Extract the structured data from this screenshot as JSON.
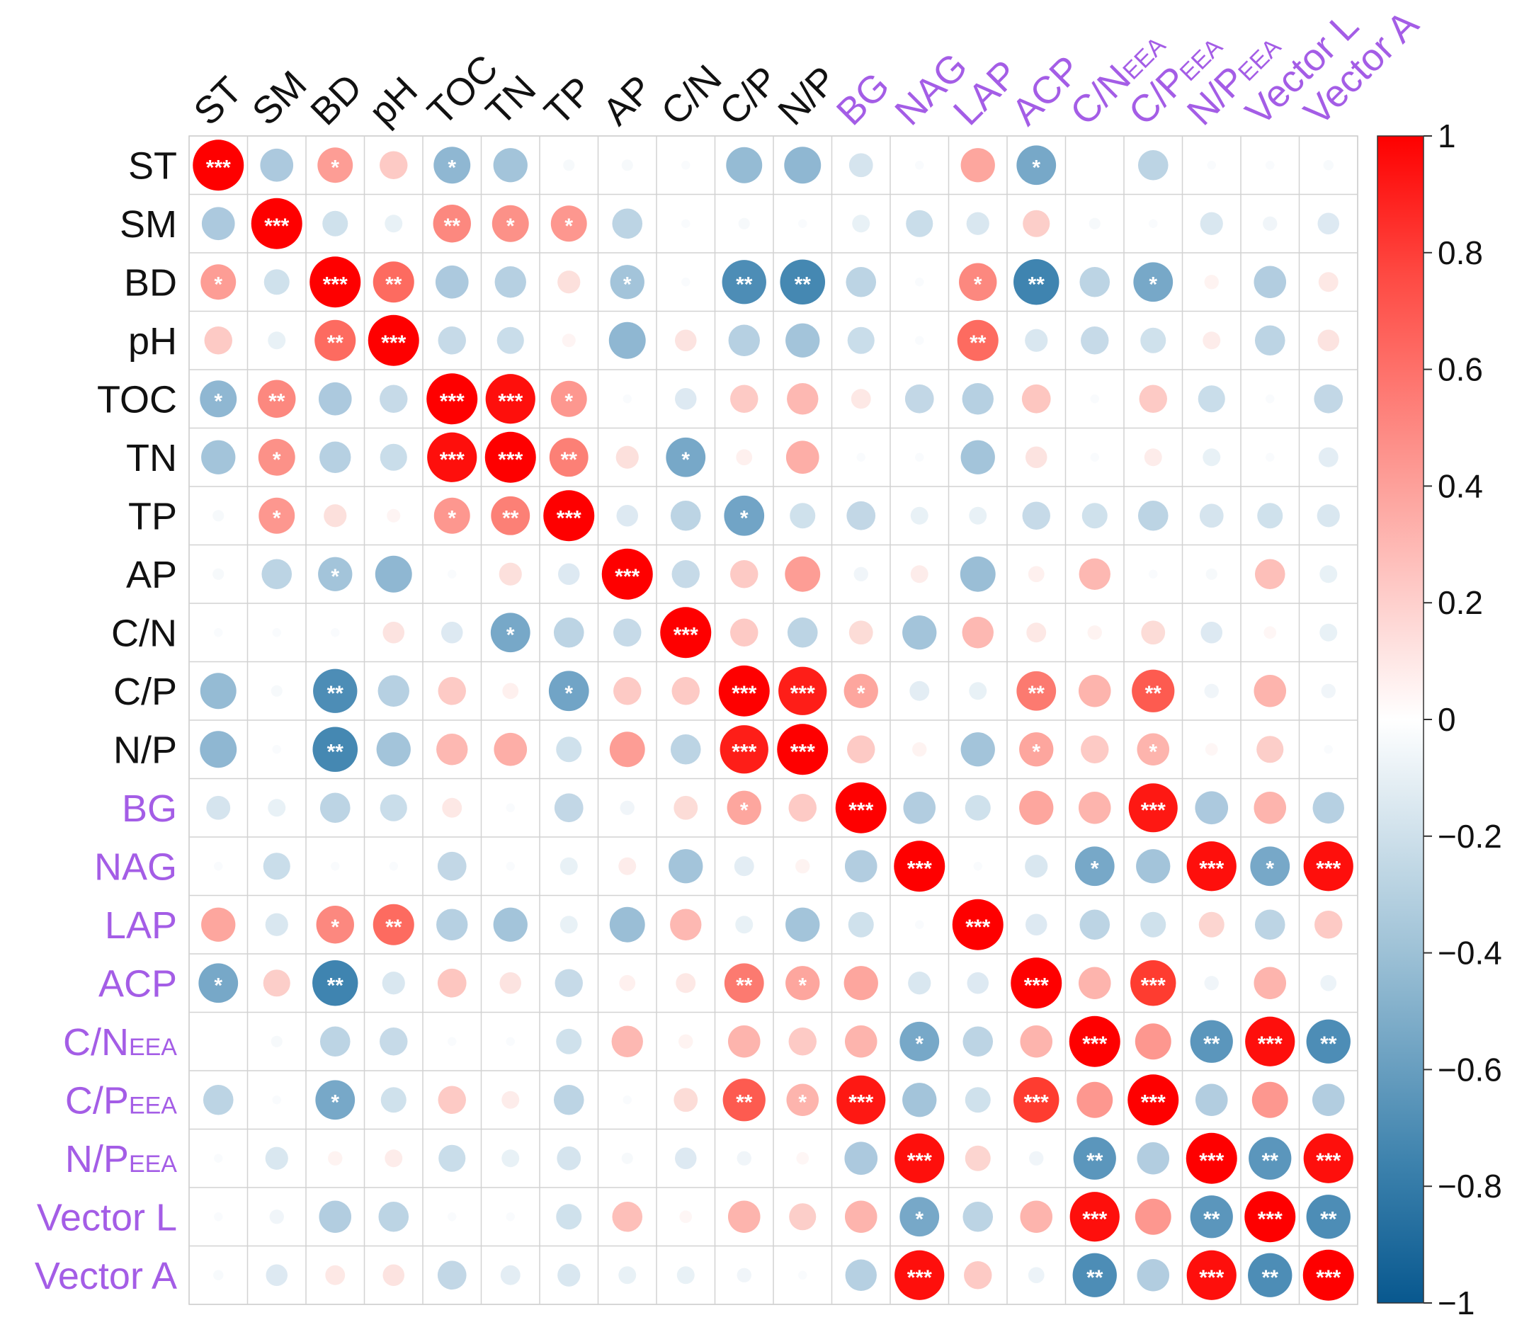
{
  "chart_data": {
    "type": "heatmap",
    "subtype": "correlation-circle-matrix",
    "title": "",
    "variables": [
      {
        "label": "ST",
        "main": "ST",
        "sub": "",
        "group": "soil"
      },
      {
        "label": "SM",
        "main": "SM",
        "sub": "",
        "group": "soil"
      },
      {
        "label": "BD",
        "main": "BD",
        "sub": "",
        "group": "soil"
      },
      {
        "label": "pH",
        "main": "pH",
        "sub": "",
        "group": "soil"
      },
      {
        "label": "TOC",
        "main": "TOC",
        "sub": "",
        "group": "soil"
      },
      {
        "label": "TN",
        "main": "TN",
        "sub": "",
        "group": "soil"
      },
      {
        "label": "TP",
        "main": "TP",
        "sub": "",
        "group": "soil"
      },
      {
        "label": "AP",
        "main": "AP",
        "sub": "",
        "group": "soil"
      },
      {
        "label": "C/N",
        "main": "C/N",
        "sub": "",
        "group": "soil"
      },
      {
        "label": "C/P",
        "main": "C/P",
        "sub": "",
        "group": "soil"
      },
      {
        "label": "N/P",
        "main": "N/P",
        "sub": "",
        "group": "soil"
      },
      {
        "label": "BG",
        "main": "BG",
        "sub": "",
        "group": "enzyme"
      },
      {
        "label": "NAG",
        "main": "NAG",
        "sub": "",
        "group": "enzyme"
      },
      {
        "label": "LAP",
        "main": "LAP",
        "sub": "",
        "group": "enzyme"
      },
      {
        "label": "ACP",
        "main": "ACP",
        "sub": "",
        "group": "enzyme"
      },
      {
        "label": "C/NEEA",
        "main": "C/N",
        "sub": "EEA",
        "group": "enzyme"
      },
      {
        "label": "C/PEEA",
        "main": "C/P",
        "sub": "EEA",
        "group": "enzyme"
      },
      {
        "label": "N/PEEA",
        "main": "N/P",
        "sub": "EEA",
        "group": "enzyme"
      },
      {
        "label": "Vector L",
        "main": "Vector L",
        "sub": "",
        "group": "enzyme"
      },
      {
        "label": "Vector A",
        "main": "Vector A",
        "sub": "",
        "group": "enzyme"
      }
    ],
    "group_colors": {
      "soil": "#111111",
      "enzyme": "#a45de6"
    },
    "matrix": [
      [
        1.0,
        -0.42,
        0.48,
        0.3,
        -0.52,
        -0.45,
        -0.05,
        -0.05,
        -0.03,
        -0.5,
        -0.52,
        -0.22,
        -0.03,
        0.45,
        -0.6,
        0.0,
        -0.35,
        -0.03,
        -0.03,
        -0.04
      ],
      [
        -0.42,
        1.0,
        -0.25,
        -0.12,
        0.55,
        0.52,
        0.5,
        -0.35,
        -0.03,
        -0.05,
        -0.03,
        -0.12,
        -0.28,
        -0.2,
        0.28,
        -0.05,
        -0.03,
        -0.2,
        -0.08,
        -0.18
      ],
      [
        0.48,
        -0.25,
        1.0,
        0.65,
        -0.42,
        -0.38,
        0.2,
        -0.45,
        -0.03,
        -0.75,
        -0.78,
        -0.35,
        -0.03,
        0.55,
        -0.8,
        -0.35,
        -0.6,
        0.08,
        -0.4,
        0.15
      ],
      [
        0.3,
        -0.12,
        0.65,
        1.0,
        -0.3,
        -0.28,
        0.07,
        -0.52,
        0.18,
        -0.38,
        -0.45,
        -0.28,
        -0.03,
        0.65,
        -0.2,
        -0.3,
        -0.25,
        0.12,
        -0.35,
        0.18
      ],
      [
        -0.52,
        0.55,
        -0.42,
        -0.3,
        1.0,
        0.95,
        0.5,
        -0.03,
        -0.18,
        0.3,
        0.38,
        0.15,
        -0.32,
        -0.38,
        0.32,
        -0.03,
        0.3,
        -0.28,
        -0.03,
        -0.32
      ],
      [
        -0.45,
        0.52,
        -0.38,
        -0.28,
        0.95,
        1.0,
        0.58,
        0.2,
        -0.6,
        0.1,
        0.42,
        -0.03,
        -0.03,
        -0.45,
        0.18,
        -0.03,
        0.12,
        -0.12,
        -0.03,
        -0.15
      ],
      [
        -0.05,
        0.5,
        0.2,
        0.07,
        0.5,
        0.58,
        1.0,
        -0.18,
        -0.35,
        -0.62,
        -0.25,
        -0.32,
        -0.12,
        -0.12,
        -0.3,
        -0.25,
        -0.35,
        -0.22,
        -0.25,
        -0.2
      ],
      [
        -0.05,
        -0.35,
        -0.45,
        -0.52,
        -0.03,
        0.2,
        -0.18,
        1.0,
        -0.3,
        0.3,
        0.48,
        -0.08,
        0.12,
        -0.48,
        0.1,
        0.38,
        -0.03,
        -0.05,
        0.35,
        -0.12
      ],
      [
        -0.03,
        -0.03,
        -0.03,
        0.18,
        -0.18,
        -0.6,
        -0.35,
        -0.3,
        1.0,
        0.3,
        -0.35,
        0.22,
        -0.45,
        0.38,
        0.15,
        0.08,
        0.22,
        -0.18,
        0.06,
        -0.12
      ],
      [
        -0.5,
        -0.05,
        -0.75,
        -0.38,
        0.3,
        0.1,
        -0.62,
        0.3,
        0.3,
        1.0,
        0.9,
        0.45,
        -0.15,
        -0.12,
        0.6,
        0.4,
        0.7,
        -0.08,
        0.4,
        -0.08
      ],
      [
        -0.52,
        -0.03,
        -0.78,
        -0.45,
        0.38,
        0.42,
        -0.25,
        0.48,
        -0.35,
        0.9,
        1.0,
        0.3,
        0.08,
        -0.45,
        0.45,
        0.3,
        0.4,
        0.06,
        0.28,
        -0.03
      ],
      [
        -0.22,
        -0.12,
        -0.35,
        -0.28,
        0.15,
        -0.03,
        -0.32,
        -0.08,
        0.22,
        0.45,
        0.3,
        1.0,
        -0.4,
        -0.25,
        0.45,
        0.4,
        0.92,
        -0.42,
        0.4,
        -0.38
      ],
      [
        -0.03,
        -0.28,
        -0.03,
        -0.03,
        -0.32,
        -0.03,
        -0.12,
        0.12,
        -0.45,
        -0.15,
        0.08,
        -0.4,
        1.0,
        -0.03,
        -0.2,
        -0.6,
        -0.45,
        0.95,
        -0.6,
        0.95
      ],
      [
        0.45,
        -0.2,
        0.55,
        0.65,
        -0.38,
        -0.45,
        -0.12,
        -0.48,
        0.38,
        -0.12,
        -0.45,
        -0.25,
        -0.03,
        1.0,
        -0.18,
        -0.35,
        -0.25,
        0.25,
        -0.35,
        0.3
      ],
      [
        -0.6,
        0.28,
        -0.8,
        -0.2,
        0.32,
        0.18,
        -0.3,
        0.1,
        0.15,
        0.6,
        0.45,
        0.45,
        -0.2,
        -0.18,
        1.0,
        0.4,
        0.8,
        -0.08,
        0.4,
        -0.1
      ],
      [
        0.0,
        -0.05,
        -0.35,
        -0.3,
        -0.03,
        -0.03,
        -0.25,
        0.38,
        0.08,
        0.4,
        0.3,
        0.4,
        -0.6,
        -0.35,
        0.4,
        1.0,
        0.5,
        -0.7,
        0.95,
        -0.75
      ],
      [
        -0.35,
        -0.03,
        -0.6,
        -0.25,
        0.3,
        0.12,
        -0.35,
        -0.03,
        0.22,
        0.7,
        0.4,
        0.92,
        -0.45,
        -0.25,
        0.8,
        0.5,
        1.0,
        -0.4,
        0.5,
        -0.4
      ],
      [
        -0.03,
        -0.2,
        0.08,
        0.12,
        -0.28,
        -0.12,
        -0.22,
        -0.05,
        -0.18,
        -0.08,
        0.06,
        -0.42,
        0.95,
        0.25,
        -0.08,
        -0.7,
        -0.4,
        1.0,
        -0.7,
        0.95
      ],
      [
        -0.03,
        -0.08,
        -0.4,
        -0.35,
        -0.03,
        -0.03,
        -0.25,
        0.35,
        0.06,
        0.4,
        0.28,
        0.4,
        -0.6,
        -0.35,
        0.4,
        0.95,
        0.5,
        -0.7,
        1.0,
        -0.75
      ],
      [
        -0.04,
        -0.18,
        0.15,
        0.18,
        -0.32,
        -0.15,
        -0.2,
        -0.12,
        -0.12,
        -0.08,
        -0.03,
        -0.38,
        0.95,
        0.3,
        -0.1,
        -0.75,
        -0.4,
        0.95,
        -0.75,
        1.0
      ]
    ],
    "significance": [
      [
        "***",
        "",
        "*",
        "",
        "*",
        "",
        "",
        "",
        "",
        "",
        "",
        "",
        "",
        "",
        "*",
        "",
        "",
        "",
        "",
        ""
      ],
      [
        "",
        "***",
        "",
        "",
        "**",
        "*",
        "*",
        "",
        "",
        "",
        "",
        "",
        "",
        "",
        "",
        "",
        "",
        "",
        "",
        ""
      ],
      [
        "*",
        "",
        "***",
        "**",
        "",
        "",
        "",
        "*",
        "",
        "**",
        "**",
        "",
        "",
        "*",
        "**",
        "",
        "*",
        "",
        "",
        ""
      ],
      [
        "",
        "",
        "**",
        "***",
        "",
        "",
        "",
        "",
        "",
        "",
        "",
        "",
        "",
        "**",
        "",
        "",
        "",
        "",
        "",
        ""
      ],
      [
        "*",
        "**",
        "",
        "",
        "***",
        "***",
        "*",
        "",
        "",
        "",
        "",
        "",
        "",
        "",
        "",
        "",
        "",
        "",
        "",
        ""
      ],
      [
        "",
        "*",
        "",
        "",
        "***",
        "***",
        "**",
        "",
        "*",
        "",
        "",
        "",
        "",
        "",
        "",
        "",
        "",
        "",
        "",
        ""
      ],
      [
        "",
        "*",
        "",
        "",
        "*",
        "**",
        "***",
        "",
        "",
        "*",
        "",
        "",
        "",
        "",
        "",
        "",
        "",
        "",
        "",
        ""
      ],
      [
        "",
        "",
        "*",
        "",
        "",
        "",
        "",
        "***",
        "",
        "",
        "",
        "",
        "",
        "",
        "",
        "",
        "",
        "",
        "",
        ""
      ],
      [
        "",
        "",
        "",
        "",
        "",
        "*",
        "",
        "",
        "***",
        "",
        "",
        "",
        "",
        "",
        "",
        "",
        "",
        "",
        "",
        ""
      ],
      [
        "",
        "",
        "**",
        "",
        "",
        "",
        "*",
        "",
        "",
        "***",
        "***",
        "*",
        "",
        "",
        "**",
        "",
        "**",
        "",
        "",
        ""
      ],
      [
        "",
        "",
        "**",
        "",
        "",
        "",
        "",
        "",
        "",
        "***",
        "***",
        "",
        "",
        "",
        "*",
        "",
        "*",
        "",
        "",
        ""
      ],
      [
        "",
        "",
        "",
        "",
        "",
        "",
        "",
        "",
        "",
        "*",
        "",
        "***",
        "",
        "",
        "",
        "",
        "***",
        "",
        "",
        ""
      ],
      [
        "",
        "",
        "",
        "",
        "",
        "",
        "",
        "",
        "",
        "",
        "",
        "",
        "***",
        "",
        "",
        "*",
        "",
        "***",
        "*",
        "***"
      ],
      [
        "",
        "",
        "*",
        "**",
        "",
        "",
        "",
        "",
        "",
        "",
        "",
        "",
        "",
        "***",
        "",
        "",
        "",
        "",
        "",
        ""
      ],
      [
        "*",
        "",
        "**",
        "",
        "",
        "",
        "",
        "",
        "",
        "**",
        "*",
        "",
        "",
        "",
        "***",
        "",
        "***",
        "",
        "",
        ""
      ],
      [
        "",
        "",
        "",
        "",
        "",
        "",
        "",
        "",
        "",
        "",
        "",
        "",
        "*",
        "",
        "",
        "***",
        "",
        "**",
        "***",
        "**"
      ],
      [
        "",
        "",
        "*",
        "",
        "",
        "",
        "",
        "",
        "",
        "**",
        "*",
        "***",
        "",
        "",
        "***",
        "",
        "***",
        "",
        "",
        ""
      ],
      [
        "",
        "",
        "",
        "",
        "",
        "",
        "",
        "",
        "",
        "",
        "",
        "",
        "***",
        "",
        "",
        "**",
        "",
        "***",
        "**",
        "***"
      ],
      [
        "",
        "",
        "",
        "",
        "",
        "",
        "",
        "",
        "",
        "",
        "",
        "",
        "*",
        "",
        "",
        "***",
        "",
        "**",
        "***",
        "**"
      ],
      [
        "",
        "",
        "",
        "",
        "",
        "",
        "",
        "",
        "",
        "",
        "",
        "",
        "***",
        "",
        "",
        "**",
        "",
        "***",
        "**",
        "***"
      ]
    ],
    "colorbar": {
      "range": [
        -1,
        1
      ],
      "ticks": [
        1,
        0.8,
        0.6,
        0.4,
        0.2,
        0,
        -0.2,
        -0.4,
        -0.6,
        -0.8,
        -1
      ],
      "tick_labels": [
        "1",
        "0.8",
        "0.6",
        "0.4",
        "0.2",
        "0",
        "−0.2",
        "−0.4",
        "−0.6",
        "−0.8",
        "−1"
      ],
      "colors": {
        "negative": "#08588f",
        "neutral": "#ffffff",
        "positive": "#fe0000"
      },
      "placement": "right"
    },
    "grid": true,
    "legend": "colorbar-right"
  }
}
